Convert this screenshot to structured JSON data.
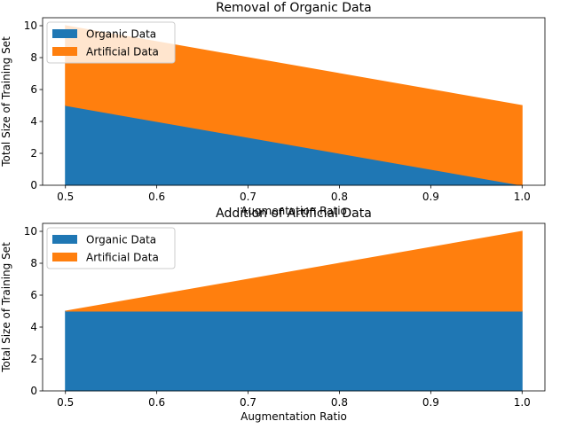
{
  "chart_data": [
    {
      "type": "area",
      "stacked": true,
      "title": "Removal of Organic Data",
      "xlabel": "Augmentation Ratio",
      "ylabel": "Total Size of Training Set",
      "x": [
        0.5,
        1.0
      ],
      "series": [
        {
          "name": "Organic Data",
          "values": [
            5,
            0
          ],
          "color": "#1f77b4"
        },
        {
          "name": "Artificial Data",
          "values": [
            5,
            5
          ],
          "color": "#ff7f0e"
        }
      ],
      "xlim": [
        0.475,
        1.025
      ],
      "ylim": [
        0,
        10.5
      ],
      "xticks": [
        "0.5",
        "0.6",
        "0.7",
        "0.8",
        "0.9",
        "1.0"
      ],
      "yticks": [
        "0",
        "2",
        "4",
        "6",
        "8",
        "10"
      ],
      "legend": "top-left",
      "grid": false
    },
    {
      "type": "area",
      "stacked": true,
      "title": "Addition of Artificial Data",
      "xlabel": "Augmentation Ratio",
      "ylabel": "Total Size of Training Set",
      "x": [
        0.5,
        1.0
      ],
      "series": [
        {
          "name": "Organic Data",
          "values": [
            5,
            5
          ],
          "color": "#1f77b4"
        },
        {
          "name": "Artificial Data",
          "values": [
            0,
            5
          ],
          "color": "#ff7f0e"
        }
      ],
      "xlim": [
        0.475,
        1.025
      ],
      "ylim": [
        0,
        10.5
      ],
      "xticks": [
        "0.5",
        "0.6",
        "0.7",
        "0.8",
        "0.9",
        "1.0"
      ],
      "yticks": [
        "0",
        "2",
        "4",
        "6",
        "8",
        "10"
      ],
      "legend": "top-left",
      "grid": false
    }
  ]
}
